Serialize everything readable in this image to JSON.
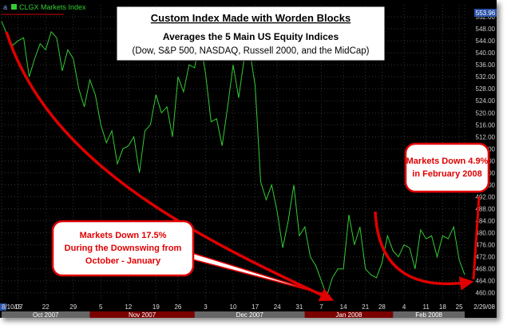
{
  "legend": {
    "label": "CLGX Markets Index"
  },
  "colors": {
    "background": "#000000",
    "series": "#33cc33",
    "grid": "#333333",
    "arrow": "#e00000",
    "price_tag": "#2a52a8",
    "month_band": "#666666",
    "month_band_alt": "#7a0000"
  },
  "price_tag": "553.96",
  "chart_data": {
    "type": "line",
    "series": [
      {
        "name": "CLGX Markets Index",
        "values": [
          550.5,
          546,
          542.5,
          544,
          545,
          532,
          538,
          543,
          541,
          547,
          545,
          534,
          541,
          538,
          528,
          522,
          531,
          526,
          516,
          510,
          514,
          503,
          508,
          509,
          512,
          500,
          514,
          516,
          526,
          520,
          522,
          512,
          532,
          527,
          536,
          535,
          544,
          533,
          517,
          518,
          509,
          522,
          536,
          525,
          538,
          541,
          529,
          497,
          491,
          496,
          487,
          475,
          484,
          496,
          479,
          482,
          472,
          469,
          464,
          459,
          465,
          468,
          468,
          486,
          476,
          482,
          468,
          466,
          465,
          470,
          479,
          474,
          472,
          476,
          475,
          468,
          481,
          478,
          479,
          472,
          479,
          478,
          482,
          471,
          466
        ]
      }
    ],
    "ylim": [
      457,
      556
    ],
    "yticks": [
      460,
      464,
      468,
      472,
      476,
      480,
      484,
      488,
      492,
      496,
      500,
      504,
      508,
      512,
      516,
      520,
      524,
      528,
      532,
      536,
      540,
      544,
      548,
      552
    ],
    "ytick_labels": [
      "460.00",
      "464.00",
      "468.00",
      "472.00",
      "476.00",
      "480.00",
      "484.00",
      "488.00",
      "492.00",
      "496.00",
      "500.00",
      "504.00",
      "508.00",
      "512.00",
      "516.00",
      "520.00",
      "524.00",
      "528.00",
      "532.00",
      "536.00",
      "540.00",
      "544.00",
      "548.00",
      "552.00"
    ],
    "xticks": [
      {
        "index": 0,
        "label": "8/10/07"
      },
      {
        "index": 3,
        "label": "15"
      },
      {
        "index": 8,
        "label": "22"
      },
      {
        "index": 13,
        "label": "29"
      },
      {
        "index": 18,
        "label": "5"
      },
      {
        "index": 23,
        "label": "12"
      },
      {
        "index": 28,
        "label": "19"
      },
      {
        "index": 32,
        "label": "26"
      },
      {
        "index": 37,
        "label": "3"
      },
      {
        "index": 42,
        "label": "10"
      },
      {
        "index": 46,
        "label": "17"
      },
      {
        "index": 50,
        "label": "24"
      },
      {
        "index": 54,
        "label": "31"
      },
      {
        "index": 58,
        "label": "7"
      },
      {
        "index": 62,
        "label": "14"
      },
      {
        "index": 66,
        "label": "21"
      },
      {
        "index": 69,
        "label": "28"
      },
      {
        "index": 73,
        "label": "4"
      },
      {
        "index": 77,
        "label": "11"
      },
      {
        "index": 80,
        "label": "18"
      },
      {
        "index": 83,
        "label": "25"
      },
      {
        "index": 84,
        "label": "2/29/08"
      }
    ],
    "months": [
      {
        "label": "Oct 2007",
        "start": 0,
        "end": 16
      },
      {
        "label": "Nov 2007",
        "start": 16,
        "end": 35
      },
      {
        "label": "Dec 2007",
        "start": 35,
        "end": 55
      },
      {
        "label": "Jan 2008",
        "start": 55,
        "end": 71
      },
      {
        "label": "Feb 2008",
        "start": 71,
        "end": 84
      }
    ],
    "title": "Custom Index Made with Worden Blocks",
    "subtitle": "Averages the 5 Main US Equity Indices",
    "subtitle2": "(Dow, S&P 500, NASDAQ, Russell 2000, and the MidCap)",
    "annotations": [
      {
        "line1": "Markets Down 17.5%",
        "line2": "During the Downswing from",
        "line3": "October - January"
      },
      {
        "line1": "Markets Down 4.9%",
        "line2": "in February 2008"
      }
    ],
    "grid": true,
    "legend_position": "top-left"
  }
}
